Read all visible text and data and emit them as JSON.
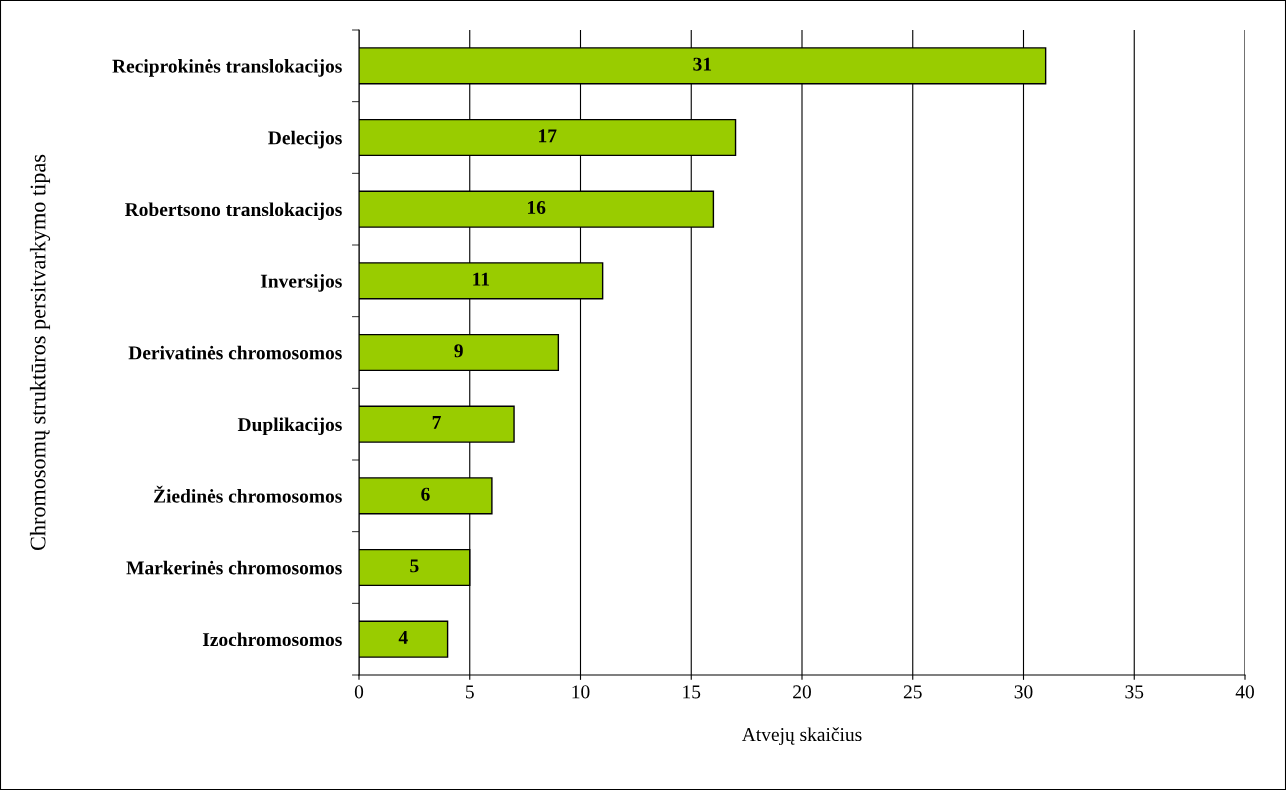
{
  "chart_data": {
    "type": "bar",
    "orientation": "horizontal",
    "ylabel": "Chromosomų struktūros persitvarkymo tipas",
    "xlabel": "Atvejų skaičius",
    "categories": [
      "Reciprokinės translokacijos",
      "Delecijos",
      "Robertsono translokacijos",
      "Inversijos",
      "Derivatinės chromosomos",
      "Duplikacijos",
      "Žiedinės chromosomos",
      "Markerinės chromosomos",
      "Izochromosomos"
    ],
    "values": [
      31,
      17,
      16,
      11,
      9,
      7,
      6,
      5,
      4
    ],
    "value_labels": [
      "31",
      "17",
      "16",
      "11",
      "9",
      "7",
      "6",
      "5",
      "4"
    ],
    "color": "#99cc00",
    "xlim": [
      0,
      40
    ],
    "xticks": [
      0,
      5,
      10,
      15,
      20,
      25,
      30,
      35,
      40
    ],
    "grid": "x"
  }
}
